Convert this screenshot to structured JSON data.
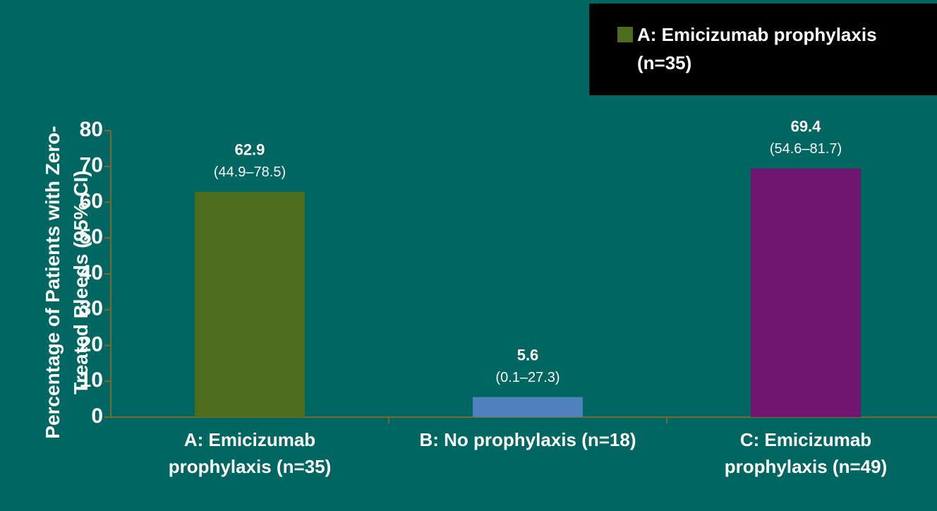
{
  "chart_data": {
    "type": "bar",
    "y_label": "Percentage of Patients with Zero-Treated Bleeds (95% CI)",
    "categories": [
      "A: Emicizumab prophylaxis (n=35)",
      "B: No prophylaxis (n=18)",
      "C: Emicizumab prophylaxis (n=49)"
    ],
    "values": [
      62.9,
      5.6,
      69.4
    ],
    "intervals": [
      "(44.9–78.5)",
      "(0.1–27.3)",
      "(54.6–81.7)"
    ],
    "colors": [
      "#4e6c1e",
      "#4f81bd",
      "#701670"
    ],
    "ylim": [
      0,
      80
    ],
    "yticks": [
      0,
      10,
      20,
      30,
      40,
      50,
      60,
      70,
      80
    ],
    "grid": false,
    "legend": "top-right"
  }
}
